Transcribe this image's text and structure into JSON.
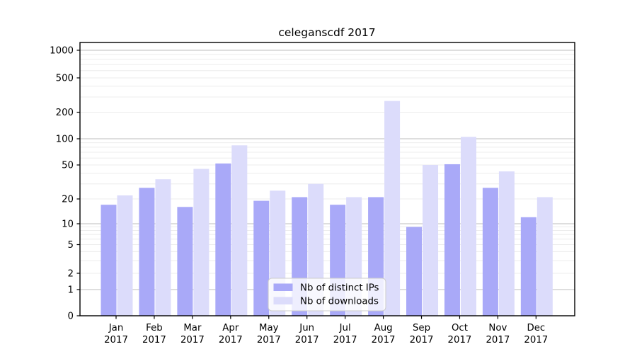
{
  "figure": {
    "title": "celeganscdf 2017"
  },
  "chart_data": {
    "type": "bar",
    "title": "celeganscdf 2017",
    "categories": [
      "Jan",
      "Feb",
      "Mar",
      "Apr",
      "May",
      "Jun",
      "Jul",
      "Aug",
      "Sep",
      "Oct",
      "Nov",
      "Dec"
    ],
    "year": "2017",
    "series": [
      {
        "name": "Nb of distinct IPs",
        "color": "#a9a9f8",
        "values": [
          17,
          27,
          16,
          52,
          19,
          21,
          17,
          21,
          9,
          51,
          27,
          12
        ]
      },
      {
        "name": "Nb of downloads",
        "color": "#dcdcfb",
        "values": [
          22,
          34,
          45,
          84,
          25,
          30,
          21,
          270,
          50,
          105,
          42,
          21
        ]
      }
    ],
    "xlabel": "",
    "ylabel": "",
    "y_scale": "symlog",
    "y_ticks": [
      0,
      1,
      2,
      5,
      10,
      20,
      50,
      100,
      200,
      500,
      1000
    ],
    "ylim": [
      0,
      1000
    ],
    "grid": "horizontal-major-and-minor",
    "legend_position": "lower-center",
    "colors": {
      "major_grid": "#bdbdbd",
      "minor_grid": "#ececec",
      "spine": "#000000",
      "legend_border": "#cccccc",
      "legend_background": "rgba(255,255,255,0.8)"
    }
  }
}
